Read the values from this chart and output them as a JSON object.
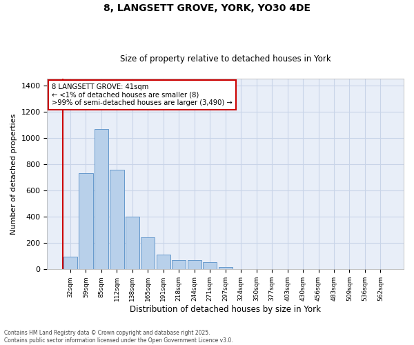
{
  "title_line1": "8, LANGSETT GROVE, YORK, YO30 4DE",
  "title_line2": "Size of property relative to detached houses in York",
  "xlabel": "Distribution of detached houses by size in York",
  "ylabel": "Number of detached properties",
  "categories": [
    "32sqm",
    "59sqm",
    "85sqm",
    "112sqm",
    "138sqm",
    "165sqm",
    "191sqm",
    "218sqm",
    "244sqm",
    "271sqm",
    "297sqm",
    "324sqm",
    "350sqm",
    "377sqm",
    "403sqm",
    "430sqm",
    "456sqm",
    "483sqm",
    "509sqm",
    "536sqm",
    "562sqm"
  ],
  "values": [
    95,
    730,
    1065,
    755,
    400,
    245,
    110,
    70,
    70,
    55,
    15,
    0,
    0,
    0,
    0,
    0,
    0,
    0,
    0,
    0,
    0
  ],
  "bar_color": "#b8d0ea",
  "bar_edge_color": "#6699cc",
  "vline_color": "#cc0000",
  "ann_box_color": "#cc0000",
  "annotation_text": "8 LANGSETT GROVE: 41sqm\n← <1% of detached houses are smaller (8)\n>99% of semi-detached houses are larger (3,490) →",
  "ylim": [
    0,
    1450
  ],
  "yticks": [
    0,
    200,
    400,
    600,
    800,
    1000,
    1200,
    1400
  ],
  "grid_color": "#c8d4e8",
  "bg_color": "#e8eef8",
  "footer_line1": "Contains HM Land Registry data © Crown copyright and database right 2025.",
  "footer_line2": "Contains public sector information licensed under the Open Government Licence v3.0."
}
